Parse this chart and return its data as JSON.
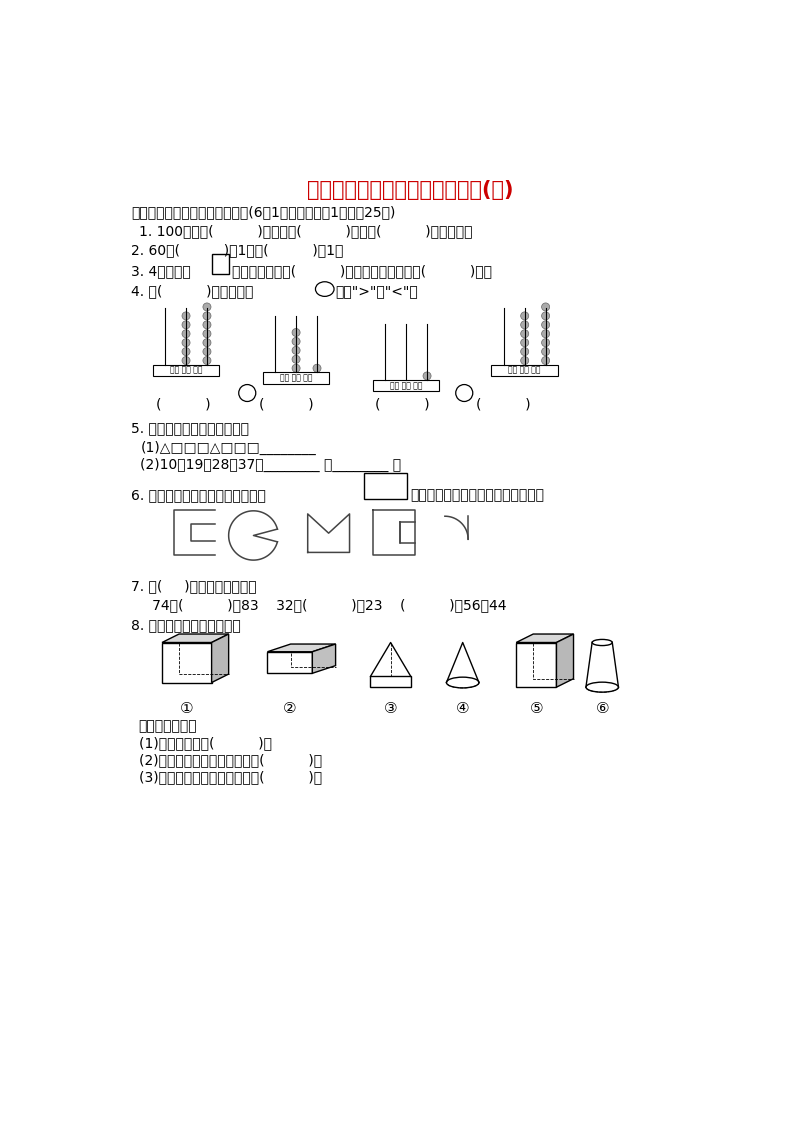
{
  "title": "一年级第二学期数学期末测试卷(四)",
  "title_color": "#CC0000",
  "bg_color": "#FFFFFF",
  "text_color": "#000000",
  "section1": "一、填一填，画一画，涂一涂。(6题1分，其余每空1分，共25分)",
  "q1": "1. 100里面有(          )个十，有(          )个一；(          )个一是十。",
  "q2": "2. 60比(          )大1，比(          )小1。",
  "q3_a": "3. 4个同样的",
  "q3_b": "，可以拼成一个(          )形，也可以拼成一个(          )形。",
  "q4_a": "4. 在(          )里填数，在",
  "q4_b": "里填\">\"或\"<\"。",
  "q5_label": "5. 找规律，画一画，写一写。",
  "q5_1": "(1)△□□□△□□□________",
  "q5_2": "(2)10，19，28，37，________ ，________ 。",
  "q6_a": "6. 从下图中选出两个可以拼成一个",
  "q6_b": "的图形，给选出的两个图形涂颜色。",
  "q7": "7. 在(     )里填上合适的数。",
  "q7_eq": "   74＋(          )＝83    32－(          )＝23    (          )－56＝44",
  "q8": "8. 看图，在括号里填序号。",
  "q8_labels": [
    "①",
    "②",
    "③",
    "④",
    "⑤",
    "⑥"
  ],
  "q8_sub1": "上面的积木里：",
  "q8_sub2": "(1)能画出圆的是(          )。",
  "q8_sub3": "(2)能画出三角形和长方形的是(          )。",
  "q8_sub4": "(3)能画出正方形和长方形的是(          )。"
}
